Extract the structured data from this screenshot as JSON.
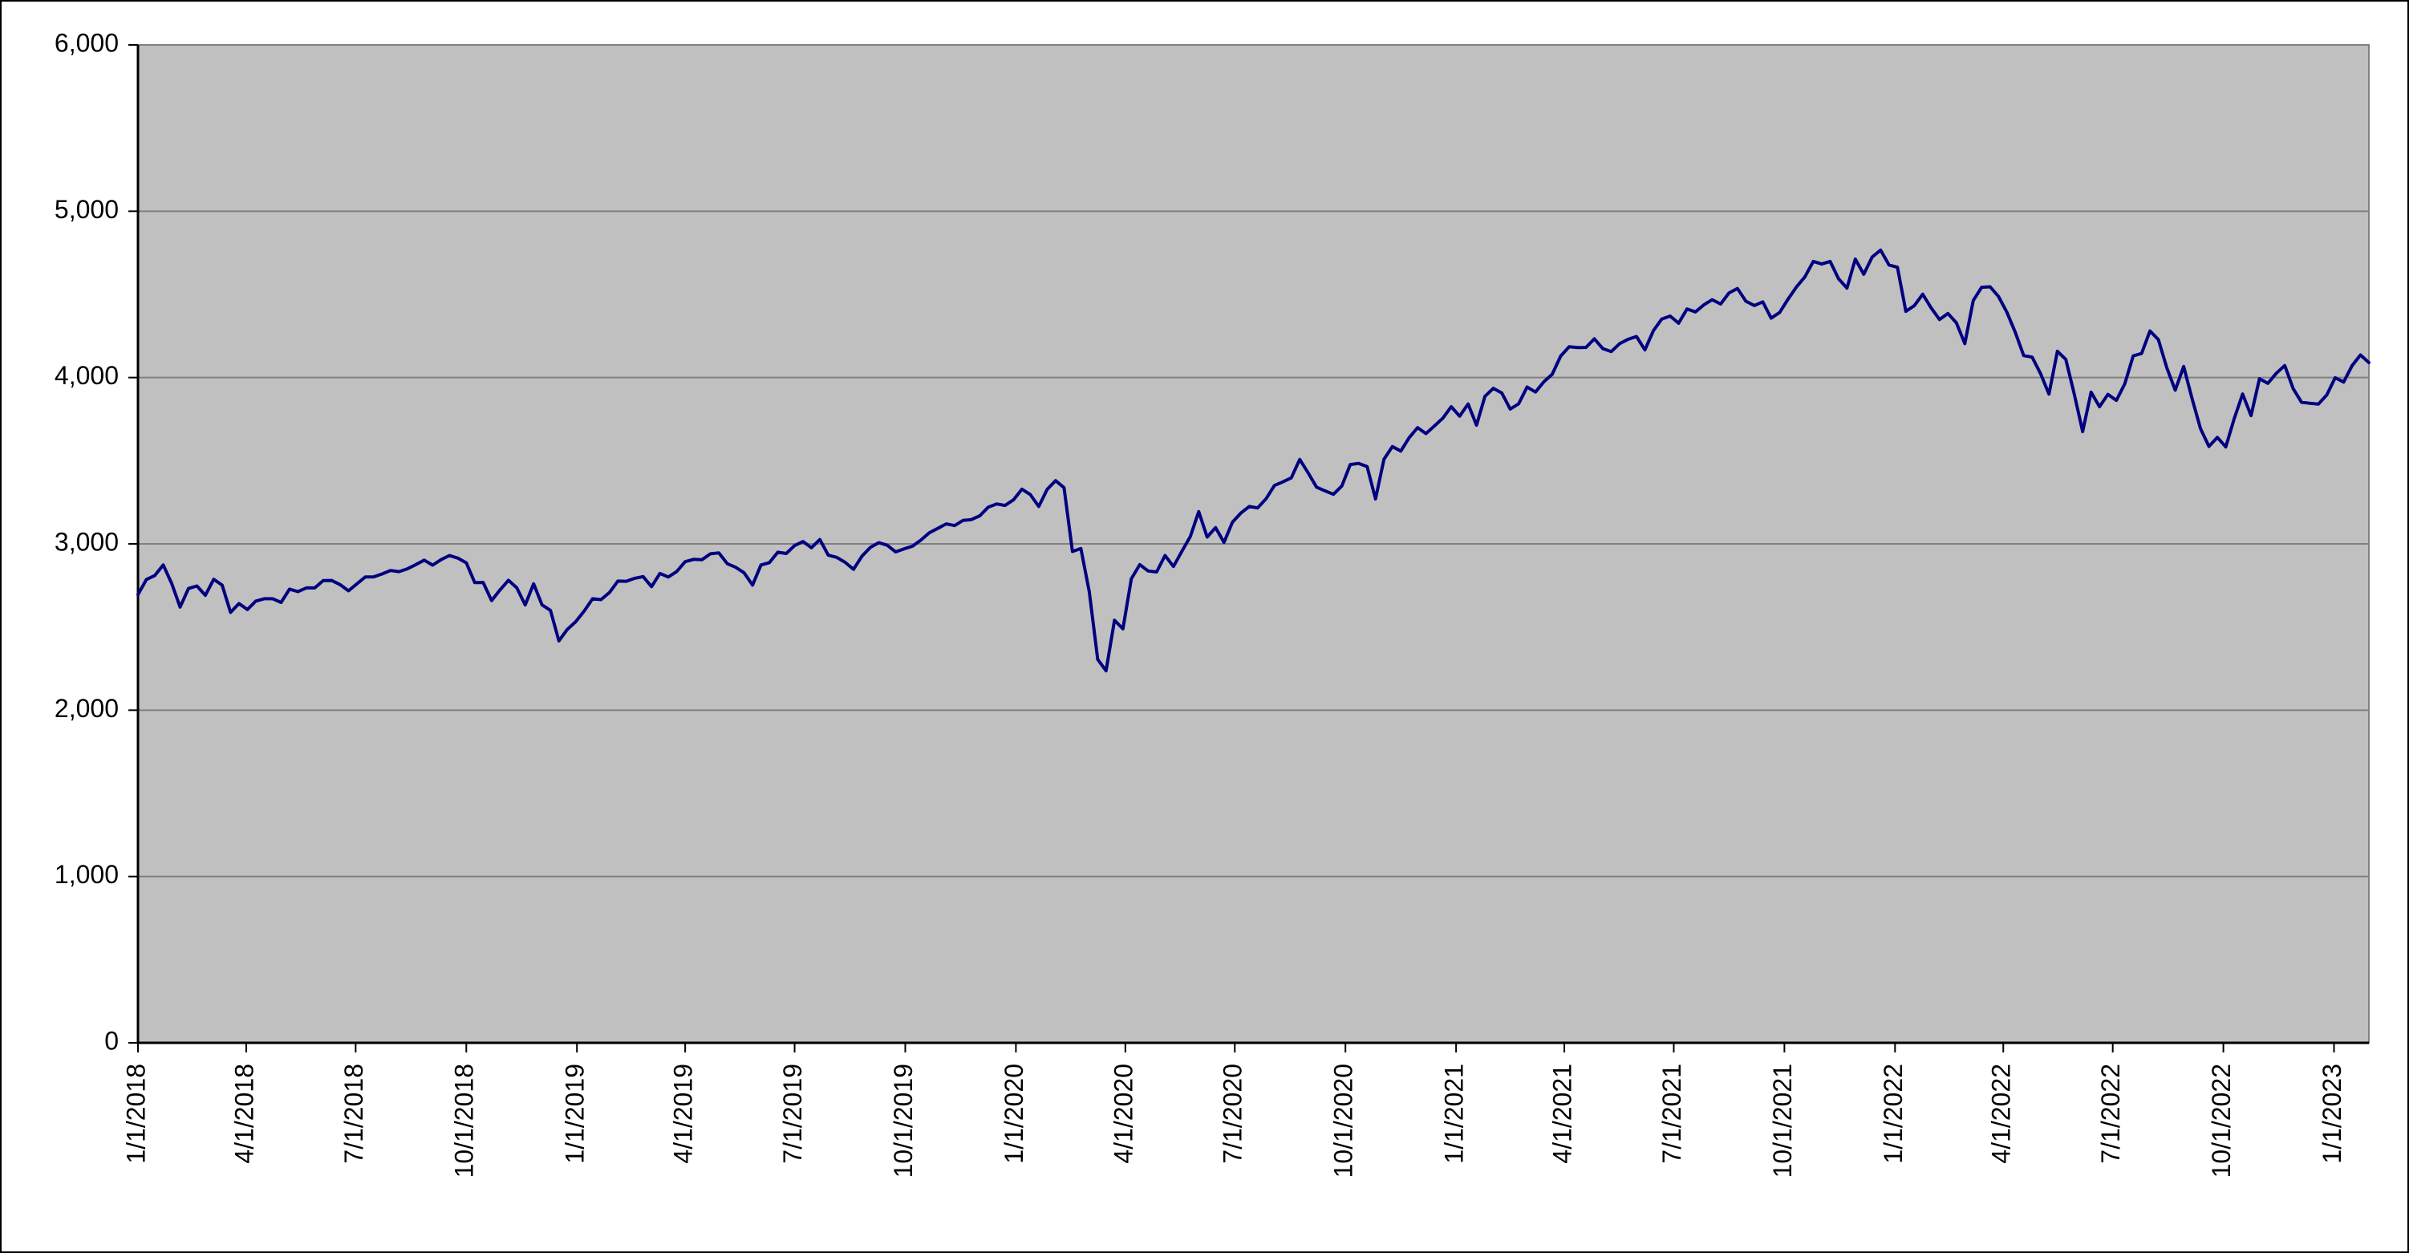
{
  "chart_data": {
    "type": "line",
    "title": "",
    "xlabel": "",
    "ylabel": "",
    "legend": "none",
    "grid": true,
    "ylim": [
      0,
      6000
    ],
    "ytick_values": [
      0,
      1000,
      2000,
      3000,
      4000,
      5000,
      6000
    ],
    "ytick_labels": [
      "0",
      "1,000",
      "2,000",
      "3,000",
      "4,000",
      "5,000",
      "6,000"
    ],
    "xtick_labels": [
      "1/1/2018",
      "4/1/2018",
      "7/1/2018",
      "10/1/2018",
      "1/1/2019",
      "4/1/2019",
      "7/1/2019",
      "10/1/2019",
      "1/1/2020",
      "4/1/2020",
      "7/1/2020",
      "10/1/2020",
      "1/1/2021",
      "4/1/2021",
      "7/1/2021",
      "10/1/2021",
      "1/1/2022",
      "4/1/2022",
      "7/1/2022",
      "10/1/2022",
      "1/1/2023"
    ],
    "plot_background": "#c0c0c0",
    "page_background": "#ffffff",
    "grid_color": "#808080",
    "axis_color": "#000000",
    "line_color": "#000080",
    "series": [
      {
        "start_date": "1/1/2018",
        "interval_days": 7,
        "values": [
          2695,
          2786,
          2810,
          2873,
          2762,
          2620,
          2732,
          2747,
          2691,
          2787,
          2752,
          2588,
          2641,
          2605,
          2656,
          2670,
          2670,
          2648,
          2728,
          2713,
          2735,
          2735,
          2779,
          2780,
          2755,
          2718,
          2760,
          2801,
          2802,
          2819,
          2840,
          2833,
          2850,
          2875,
          2902,
          2872,
          2905,
          2930,
          2914,
          2886,
          2767,
          2768,
          2659,
          2723,
          2781,
          2736,
          2633,
          2760,
          2633,
          2600,
          2417,
          2486,
          2532,
          2596,
          2670,
          2665,
          2707,
          2776,
          2775,
          2793,
          2803,
          2743,
          2822,
          2801,
          2834,
          2893,
          2907,
          2905,
          2940,
          2946,
          2881,
          2859,
          2826,
          2752,
          2873,
          2887,
          2950,
          2942,
          2990,
          3014,
          2977,
          3026,
          2932,
          2919,
          2889,
          2847,
          2926,
          2979,
          3007,
          2992,
          2952,
          2970,
          2986,
          3023,
          3067,
          3093,
          3120,
          3110,
          3141,
          3146,
          3169,
          3221,
          3240,
          3231,
          3265,
          3329,
          3296,
          3225,
          3328,
          3380,
          3338,
          2954,
          2972,
          2711,
          2305,
          2237,
          2541,
          2489,
          2790,
          2875,
          2837,
          2831,
          2930,
          2864,
          2955,
          3044,
          3194,
          3041,
          3098,
          3009,
          3130,
          3185,
          3225,
          3216,
          3271,
          3351,
          3373,
          3397,
          3508,
          3427,
          3341,
          3319,
          3298,
          3348,
          3477,
          3484,
          3465,
          3270,
          3509,
          3585,
          3558,
          3638,
          3699,
          3663,
          3709,
          3756,
          3825,
          3768,
          3841,
          3714,
          3887,
          3935,
          3907,
          3811,
          3842,
          3943,
          3913,
          3975,
          4020,
          4129,
          4185,
          4180,
          4181,
          4233,
          4174,
          4156,
          4204,
          4230,
          4247,
          4166,
          4281,
          4352,
          4370,
          4327,
          4412,
          4395,
          4437,
          4468,
          4442,
          4509,
          4535,
          4459,
          4433,
          4455,
          4357,
          4391,
          4471,
          4545,
          4605,
          4698,
          4683,
          4698,
          4594,
          4538,
          4712,
          4621,
          4725,
          4766,
          4677,
          4663,
          4398,
          4432,
          4501,
          4419,
          4349,
          4385,
          4329,
          4204,
          4463,
          4543,
          4546,
          4488,
          4393,
          4272,
          4132,
          4123,
          4024,
          3901,
          4158,
          4109,
          3901,
          3675,
          3912,
          3825,
          3899,
          3863,
          3962,
          4130,
          4145,
          4280,
          4228,
          4058,
          3924,
          4067,
          3873,
          3693,
          3586,
          3640,
          3583,
          3753,
          3901,
          3771,
          3993,
          3965,
          4026,
          4072,
          3934,
          3852,
          3845,
          3840,
          3895,
          3999,
          3973,
          4071,
          4136,
          4090
        ]
      }
    ]
  }
}
